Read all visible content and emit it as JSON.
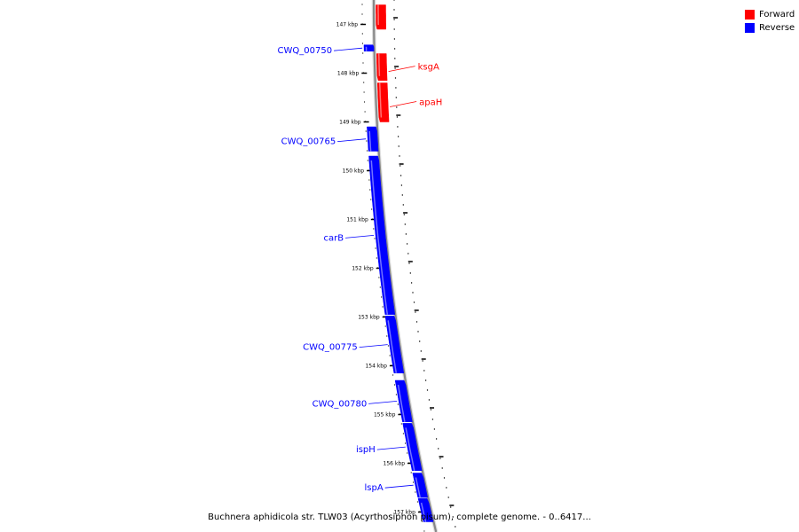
{
  "legend": {
    "items": [
      {
        "label": "Forward",
        "color": "#ff0000"
      },
      {
        "label": "Reverse",
        "color": "#0000ff"
      }
    ]
  },
  "caption": "Buchnera aphidicola str. TLW03 (Acyrthosiphon pisum), complete genome. - 0..6417...",
  "colors": {
    "forward": "#ff0000",
    "reverse": "#0000ff",
    "backbone": "#888888",
    "tick": "#000000"
  },
  "ruler": {
    "labels": [
      "147 kbp",
      "148 kbp",
      "149 kbp",
      "150 kbp",
      "151 kbp",
      "152 kbp",
      "153 kbp",
      "154 kbp",
      "155 kbp",
      "156 kbp",
      "157 kbp"
    ]
  },
  "features": [
    {
      "strand": "forward",
      "start_kbp": 146.6,
      "end_kbp": 147.1,
      "label": ""
    },
    {
      "strand": "reverse",
      "start_kbp": 147.42,
      "end_kbp": 147.55,
      "label": "CWQ_00750"
    },
    {
      "strand": "forward",
      "start_kbp": 147.6,
      "end_kbp": 148.15,
      "label": "ksgA"
    },
    {
      "strand": "forward",
      "start_kbp": 148.2,
      "end_kbp": 149.0,
      "label": "apaH"
    },
    {
      "strand": "reverse",
      "start_kbp": 149.1,
      "end_kbp": 149.6,
      "label": "CWQ_00765"
    },
    {
      "strand": "reverse",
      "start_kbp": 149.7,
      "end_kbp": 152.95,
      "label": "carB"
    },
    {
      "strand": "reverse",
      "start_kbp": 152.98,
      "end_kbp": 154.15,
      "label": "CWQ_00775"
    },
    {
      "strand": "reverse",
      "start_kbp": 154.3,
      "end_kbp": 155.15,
      "label": "CWQ_00780"
    },
    {
      "strand": "reverse",
      "start_kbp": 155.18,
      "end_kbp": 156.15,
      "label": "ispH"
    },
    {
      "strand": "reverse",
      "start_kbp": 156.2,
      "end_kbp": 156.7,
      "label": "lspA"
    },
    {
      "strand": "reverse",
      "start_kbp": 156.72,
      "end_kbp": 157.2,
      "label": ""
    }
  ]
}
